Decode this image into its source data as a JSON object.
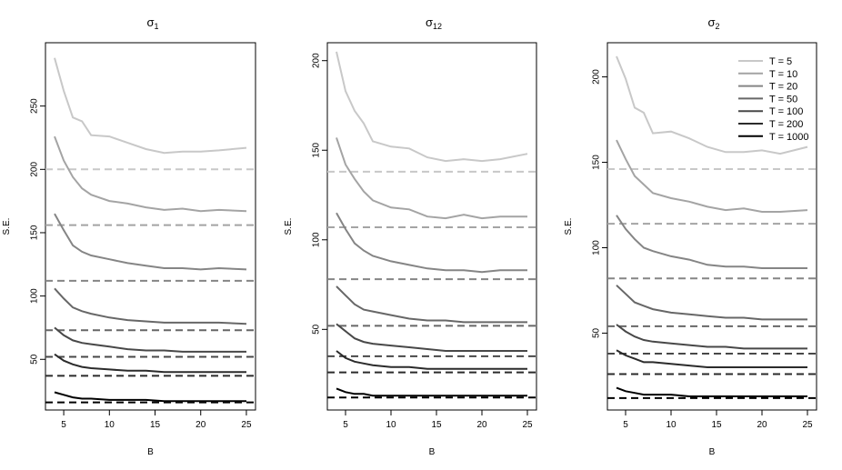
{
  "chart_data": [
    {
      "type": "line",
      "title": "σ",
      "title_sub": "1",
      "xlabel": "B",
      "ylabel": "S.E.",
      "xlim": [
        3,
        26
      ],
      "ylim": [
        10,
        300
      ],
      "xticks": [
        5,
        10,
        15,
        20,
        25
      ],
      "yticks": [
        50,
        100,
        150,
        200,
        250
      ],
      "x": [
        4,
        5,
        6,
        7,
        8,
        10,
        12,
        14,
        16,
        18,
        20,
        22,
        25
      ],
      "series": [
        {
          "name": "T = 5",
          "color": "#c8c8c8",
          "values": [
            288,
            262,
            241,
            238,
            227,
            226,
            221,
            216,
            213,
            214,
            214,
            215,
            217
          ],
          "reference": 200
        },
        {
          "name": "T = 10",
          "color": "#a4a4a4",
          "values": [
            226,
            207,
            194,
            185,
            180,
            175,
            173,
            170,
            168,
            169,
            167,
            168,
            167
          ],
          "reference": 156
        },
        {
          "name": "T = 20",
          "color": "#858585",
          "values": [
            165,
            152,
            140,
            135,
            132,
            129,
            126,
            124,
            122,
            122,
            121,
            122,
            121
          ],
          "reference": 112
        },
        {
          "name": "T = 50",
          "color": "#676767",
          "values": [
            106,
            98,
            91,
            88,
            86,
            83,
            81,
            80,
            79,
            79,
            79,
            79,
            78
          ],
          "reference": 73
        },
        {
          "name": "T = 100",
          "color": "#484848",
          "values": [
            75,
            69,
            65,
            63,
            62,
            60,
            58,
            57,
            57,
            56,
            56,
            56,
            56
          ],
          "reference": 52
        },
        {
          "name": "T = 200",
          "color": "#2b2b2b",
          "values": [
            54,
            49,
            46,
            44,
            43,
            42,
            41,
            41,
            40,
            40,
            40,
            40,
            40
          ],
          "reference": 37
        },
        {
          "name": "T = 1000",
          "color": "#000000",
          "values": [
            24,
            22,
            20,
            19,
            19,
            18,
            18,
            18,
            17,
            17,
            17,
            17,
            17
          ],
          "reference": 16
        }
      ]
    },
    {
      "type": "line",
      "title": "σ",
      "title_sub": "12",
      "xlabel": "B",
      "ylabel": "S.E.",
      "xlim": [
        3,
        26
      ],
      "ylim": [
        5,
        210
      ],
      "xticks": [
        5,
        10,
        15,
        20,
        25
      ],
      "yticks": [
        50,
        100,
        150,
        200
      ],
      "x": [
        4,
        5,
        6,
        7,
        8,
        10,
        12,
        14,
        16,
        18,
        20,
        22,
        25
      ],
      "series": [
        {
          "name": "T = 5",
          "color": "#c8c8c8",
          "values": [
            205,
            183,
            172,
            165,
            155,
            152,
            151,
            146,
            144,
            145,
            144,
            145,
            148
          ],
          "reference": 138
        },
        {
          "name": "T = 10",
          "color": "#a4a4a4",
          "values": [
            157,
            142,
            134,
            127,
            122,
            118,
            117,
            113,
            112,
            114,
            112,
            113,
            113
          ],
          "reference": 107
        },
        {
          "name": "T = 20",
          "color": "#858585",
          "values": [
            115,
            106,
            98,
            94,
            91,
            88,
            86,
            84,
            83,
            83,
            82,
            83,
            83
          ],
          "reference": 78
        },
        {
          "name": "T = 50",
          "color": "#676767",
          "values": [
            74,
            69,
            64,
            61,
            60,
            58,
            56,
            55,
            55,
            54,
            54,
            54,
            54
          ],
          "reference": 52
        },
        {
          "name": "T = 100",
          "color": "#484848",
          "values": [
            53,
            49,
            45,
            43,
            42,
            41,
            40,
            39,
            38,
            38,
            38,
            38,
            38
          ],
          "reference": 35
        },
        {
          "name": "T = 200",
          "color": "#2b2b2b",
          "values": [
            38,
            34,
            32,
            31,
            30,
            29,
            29,
            28,
            28,
            28,
            28,
            28,
            28
          ],
          "reference": 26
        },
        {
          "name": "T = 1000",
          "color": "#000000",
          "values": [
            17,
            15,
            14,
            14,
            13,
            13,
            13,
            13,
            13,
            13,
            13,
            13,
            13
          ],
          "reference": 12
        }
      ]
    },
    {
      "type": "line",
      "title": "σ",
      "title_sub": "2",
      "xlabel": "B",
      "ylabel": "S.E.",
      "xlim": [
        3,
        26
      ],
      "ylim": [
        5,
        220
      ],
      "xticks": [
        5,
        10,
        15,
        20,
        25
      ],
      "yticks": [
        50,
        100,
        150,
        200
      ],
      "x": [
        4,
        5,
        6,
        7,
        8,
        10,
        12,
        14,
        16,
        18,
        20,
        22,
        25
      ],
      "series": [
        {
          "name": "T = 5",
          "color": "#c8c8c8",
          "values": [
            212,
            199,
            182,
            179,
            167,
            168,
            164,
            159,
            156,
            156,
            157,
            155,
            159
          ],
          "reference": 146
        },
        {
          "name": "T = 10",
          "color": "#a4a4a4",
          "values": [
            163,
            152,
            142,
            137,
            132,
            129,
            127,
            124,
            122,
            123,
            121,
            121,
            122
          ],
          "reference": 114
        },
        {
          "name": "T = 20",
          "color": "#858585",
          "values": [
            119,
            111,
            105,
            100,
            98,
            95,
            93,
            90,
            89,
            89,
            88,
            88,
            88
          ],
          "reference": 82
        },
        {
          "name": "T = 50",
          "color": "#676767",
          "values": [
            78,
            73,
            68,
            66,
            64,
            62,
            61,
            60,
            59,
            59,
            58,
            58,
            58
          ],
          "reference": 54
        },
        {
          "name": "T = 100",
          "color": "#484848",
          "values": [
            55,
            51,
            48,
            46,
            45,
            44,
            43,
            42,
            42,
            41,
            41,
            41,
            41
          ],
          "reference": 38
        },
        {
          "name": "T = 200",
          "color": "#2b2b2b",
          "values": [
            40,
            37,
            35,
            33,
            33,
            32,
            31,
            30,
            30,
            30,
            30,
            30,
            30
          ],
          "reference": 26
        },
        {
          "name": "T = 1000",
          "color": "#000000",
          "values": [
            18,
            16,
            15,
            14,
            14,
            14,
            13,
            13,
            13,
            13,
            13,
            13,
            13
          ],
          "reference": 12
        }
      ]
    }
  ],
  "legend": {
    "placement": "top-right of third panel",
    "entries": [
      "T = 5",
      "T = 10",
      "T = 20",
      "T = 50",
      "T = 100",
      "T = 200",
      "T = 1000"
    ]
  }
}
